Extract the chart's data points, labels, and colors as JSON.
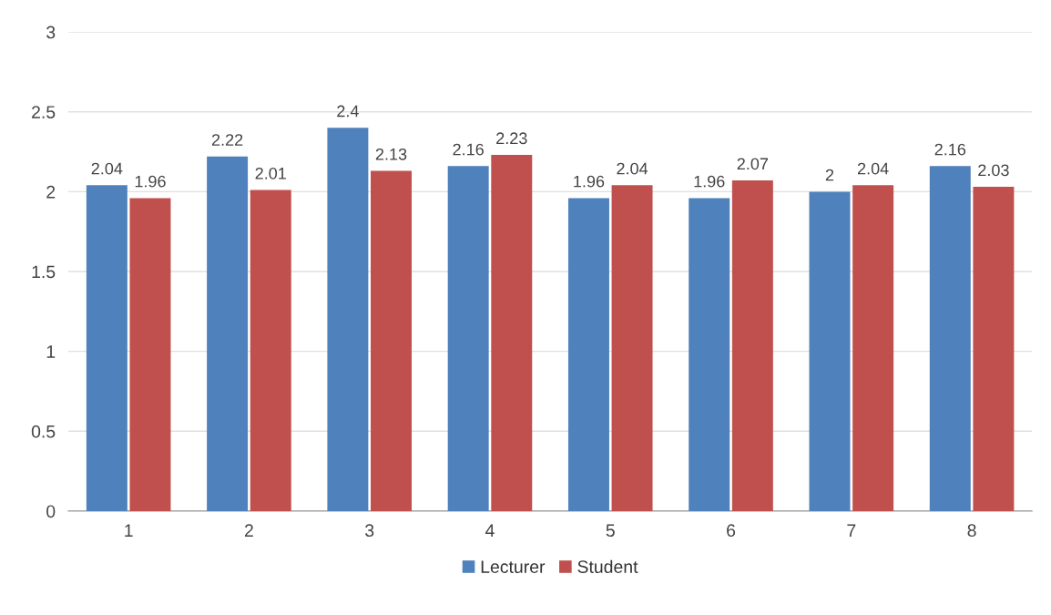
{
  "chart_data": {
    "type": "bar",
    "categories": [
      "1",
      "2",
      "3",
      "4",
      "5",
      "6",
      "7",
      "8"
    ],
    "series": [
      {
        "name": "Lecturer",
        "color": "#4f81bd",
        "values": [
          2.04,
          2.22,
          2.4,
          2.16,
          1.96,
          1.96,
          2,
          2.16
        ]
      },
      {
        "name": "Student",
        "color": "#c0504d",
        "values": [
          1.96,
          2.01,
          2.13,
          2.23,
          2.04,
          2.07,
          2.04,
          2.03
        ]
      }
    ],
    "ylim": [
      0,
      3
    ],
    "yticks": [
      0,
      0.5,
      1,
      1.5,
      2,
      2.5,
      3
    ],
    "grid": "y",
    "legend": "bottom",
    "data_labels": true
  }
}
